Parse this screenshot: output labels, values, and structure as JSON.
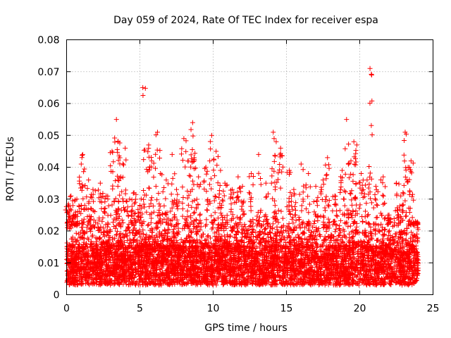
{
  "chart_data": {
    "type": "scatter",
    "title": "Day 059 of 2024, Rate Of TEC Index for receiver espa",
    "xlabel": "GPS time / hours",
    "ylabel": "ROTI / TECUs",
    "xlim": [
      0,
      25
    ],
    "ylim": [
      0,
      0.08
    ],
    "x_ticks": [
      0,
      5,
      10,
      15,
      20,
      25
    ],
    "y_ticks": [
      0,
      0.01,
      0.02,
      0.03,
      0.04,
      0.05,
      0.06,
      0.07,
      0.08
    ],
    "x_tick_labels": [
      "0",
      "5",
      "10",
      "15",
      "20",
      "25"
    ],
    "y_tick_labels": [
      "0",
      "0.01",
      "0.02",
      "0.03",
      "0.04",
      "0.05",
      "0.06",
      "0.07",
      "0.08"
    ],
    "grid": true,
    "marker": "plus",
    "color": "#ff0000",
    "series": [
      {
        "name": "ROTI",
        "x": [
          0.1,
          0.3,
          0.5,
          0.7,
          1.0,
          1.1,
          1.5,
          1.8,
          2.3,
          2.7,
          3.1,
          3.4,
          3.5,
          3.7,
          4.0,
          4.3,
          4.6,
          5.0,
          5.2,
          5.6,
          5.8,
          6.2,
          6.4,
          6.8,
          7.2,
          7.5,
          8.0,
          8.3,
          8.6,
          8.7,
          9.0,
          9.5,
          9.9,
          10.2,
          10.5,
          10.8,
          11.3,
          11.7,
          12.0,
          12.6,
          13.1,
          13.6,
          14.1,
          14.3,
          14.6,
          15.2,
          15.5,
          16.0,
          16.5,
          17.0,
          17.5,
          17.8,
          18.3,
          18.8,
          19.1,
          19.4,
          19.6,
          19.8,
          20.1,
          20.5,
          20.7,
          21.1,
          21.6,
          22.0,
          22.5,
          22.8,
          23.1,
          23.3,
          23.5,
          23.8
        ],
        "y": [
          0.028,
          0.031,
          0.025,
          0.03,
          0.041,
          0.044,
          0.036,
          0.033,
          0.035,
          0.031,
          0.045,
          0.055,
          0.048,
          0.037,
          0.046,
          0.03,
          0.032,
          0.028,
          0.065,
          0.047,
          0.042,
          0.051,
          0.038,
          0.036,
          0.044,
          0.033,
          0.049,
          0.042,
          0.054,
          0.043,
          0.037,
          0.04,
          0.05,
          0.045,
          0.039,
          0.035,
          0.033,
          0.037,
          0.034,
          0.038,
          0.044,
          0.035,
          0.051,
          0.048,
          0.046,
          0.039,
          0.033,
          0.041,
          0.038,
          0.034,
          0.036,
          0.043,
          0.031,
          0.039,
          0.055,
          0.042,
          0.048,
          0.047,
          0.038,
          0.036,
          0.071,
          0.034,
          0.037,
          0.025,
          0.035,
          0.031,
          0.051,
          0.04,
          0.042,
          0.023
        ],
        "dense_band": {
          "x_range": [
            0,
            24
          ],
          "y_min": 0.003,
          "y_max": 0.022,
          "concentration_range": [
            0.006,
            0.015
          ]
        }
      }
    ]
  }
}
